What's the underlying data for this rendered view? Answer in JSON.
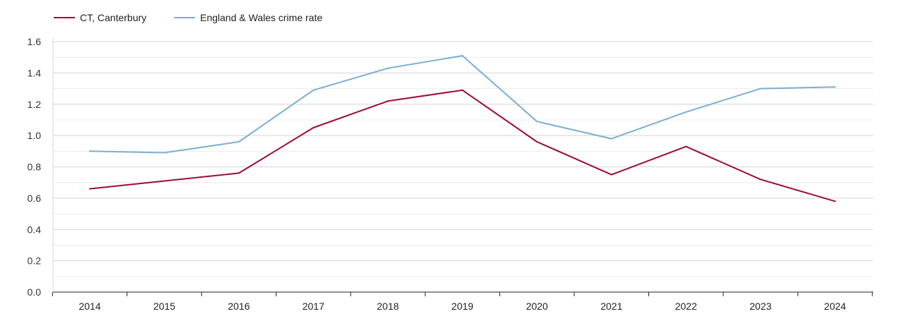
{
  "chart_data": {
    "type": "line",
    "title": "",
    "xlabel": "",
    "ylabel": "",
    "x": [
      "2014",
      "2015",
      "2016",
      "2017",
      "2018",
      "2019",
      "2020",
      "2021",
      "2022",
      "2023",
      "2024"
    ],
    "ylim": [
      0,
      1.6
    ],
    "yticks": [
      "0.0",
      "0.2",
      "0.4",
      "0.6",
      "0.8",
      "1.0",
      "1.2",
      "1.4",
      "1.6"
    ],
    "grid": true,
    "legend_position": "top-left",
    "series": [
      {
        "name": "CT, Canterbury",
        "color": "#9e0b36",
        "values": [
          0.66,
          0.71,
          0.76,
          1.05,
          1.22,
          1.29,
          0.96,
          0.75,
          0.93,
          0.72,
          0.58
        ]
      },
      {
        "name": "England & Wales crime rate",
        "color": "#7aafd4",
        "values": [
          0.9,
          0.89,
          0.96,
          1.29,
          1.43,
          1.51,
          1.09,
          0.98,
          1.15,
          1.3,
          1.31
        ]
      }
    ]
  }
}
